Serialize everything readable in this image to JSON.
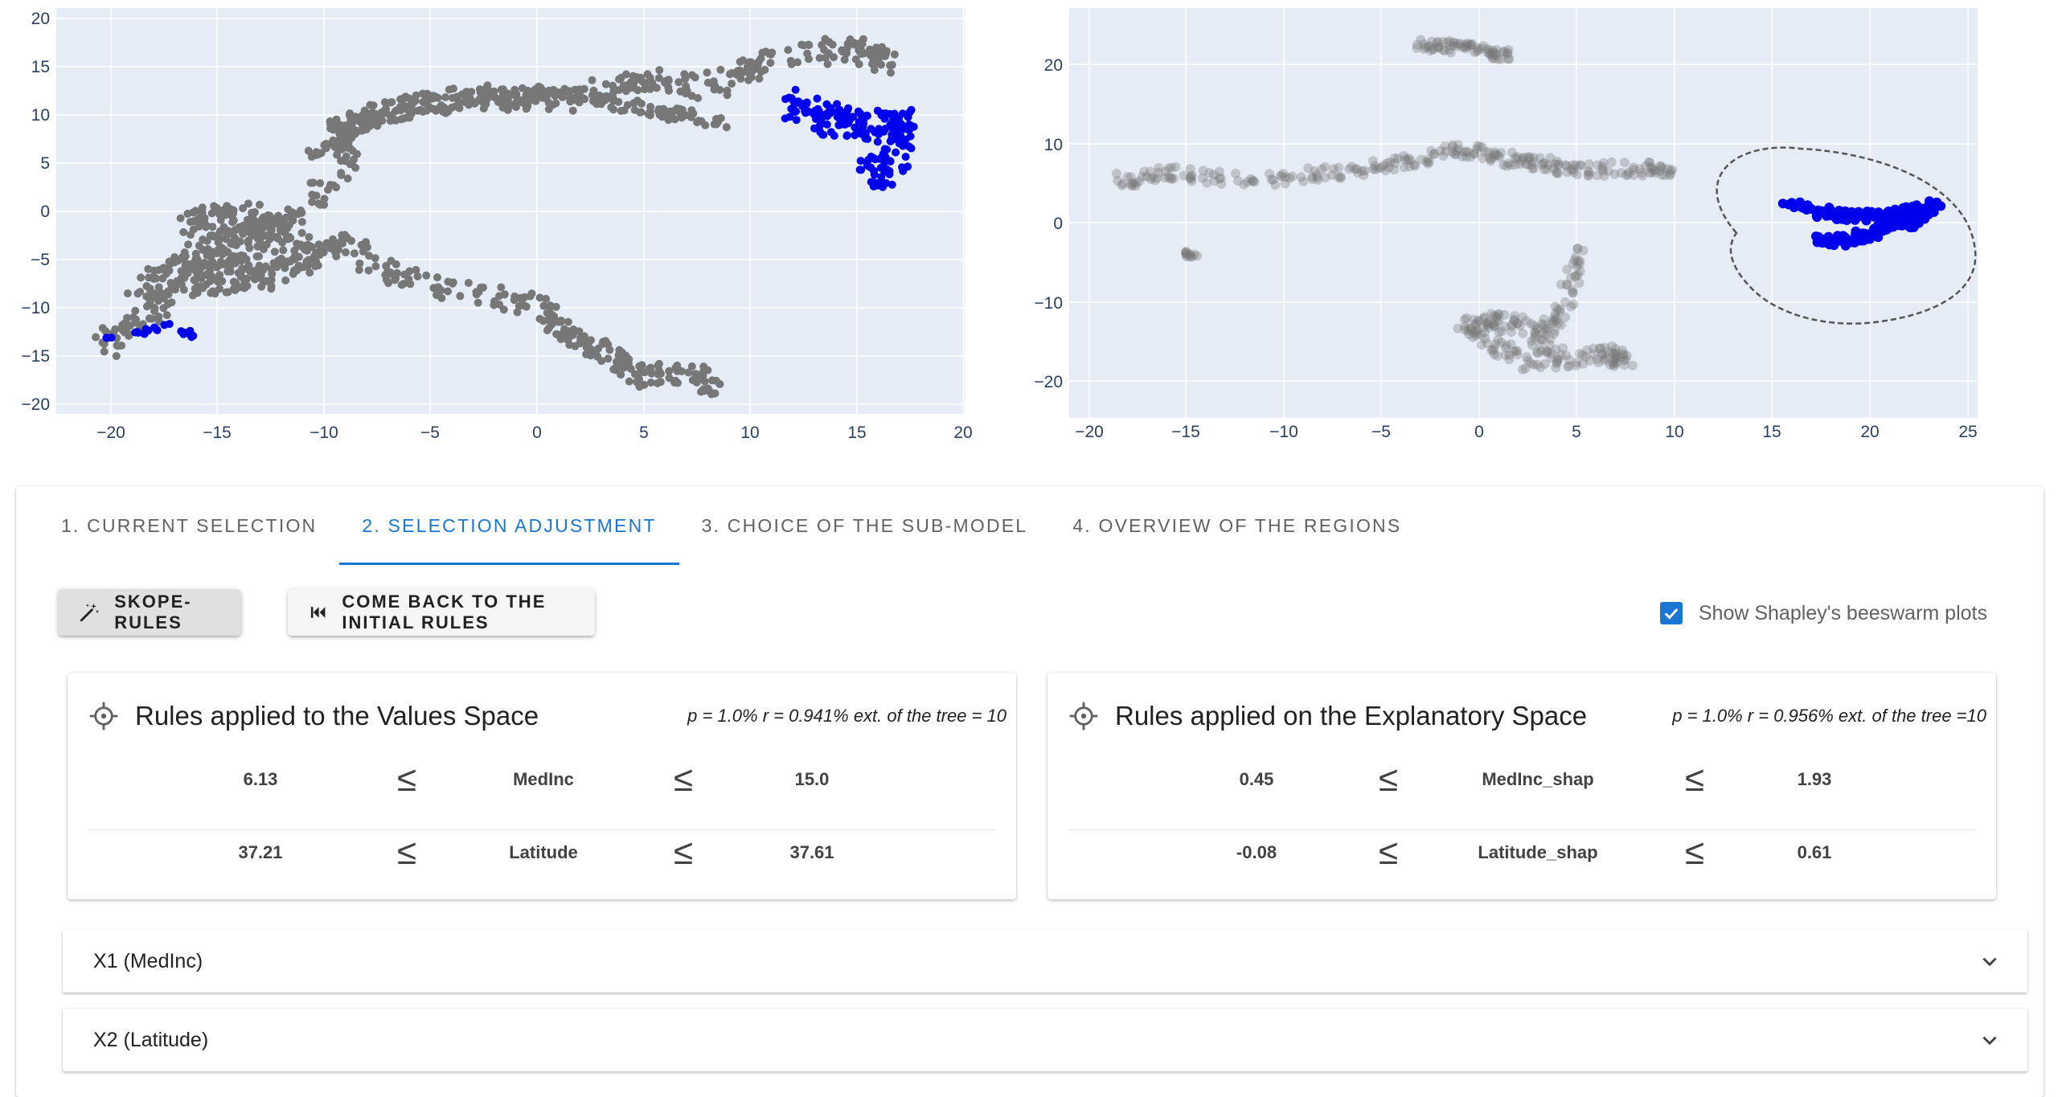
{
  "left_plot": {
    "x_ticks": [
      "−20",
      "−15",
      "−10",
      "−5",
      "0",
      "5",
      "10",
      "15",
      "20"
    ],
    "y_ticks": [
      "20",
      "15",
      "10",
      "5",
      "0",
      "−5",
      "−10",
      "−15",
      "−20"
    ]
  },
  "right_plot": {
    "x_ticks": [
      "−20",
      "−15",
      "−10",
      "−5",
      "0",
      "5",
      "10",
      "15",
      "20",
      "25"
    ],
    "y_ticks": [
      "20",
      "10",
      "0",
      "−10",
      "−20"
    ]
  },
  "colors": {
    "accent": "#1976d2",
    "selected_point": "#0000ee",
    "point": "#777777",
    "plot_bg": "#e5ecf6"
  },
  "tabs": [
    {
      "label": "1. Current selection"
    },
    {
      "label": "2. Selection adjustment"
    },
    {
      "label": "3. Choice of the sub-model"
    },
    {
      "label": "4. Overview of the regions"
    }
  ],
  "active_tab": 1,
  "buttons": {
    "skope": "Skope-Rules",
    "back": "Come back to the initial rules"
  },
  "checkbox": {
    "label": "Show Shapley's beeswarm plots",
    "checked": true
  },
  "values_card": {
    "title": "Rules applied to the Values Space",
    "stats": "p = 1.0% r = 0.941% ext. of the tree = 10",
    "rules": [
      {
        "min": "6.13",
        "op1": "≤",
        "feature": "MedInc",
        "op2": "≤",
        "max": "15.0"
      },
      {
        "min": "37.21",
        "op1": "≤",
        "feature": "Latitude",
        "op2": "≤",
        "max": "37.61"
      }
    ]
  },
  "explain_card": {
    "title": "Rules applied on the Explanatory Space",
    "stats": "p = 1.0% r = 0.956% ext. of the tree =10",
    "rules": [
      {
        "min": "0.45",
        "op1": "≤",
        "feature": "MedInc_shap",
        "op2": "≤",
        "max": "1.93"
      },
      {
        "min": "-0.08",
        "op1": "≤",
        "feature": "Latitude_shap",
        "op2": "≤",
        "max": "0.61"
      }
    ]
  },
  "expanders": [
    {
      "label": "X1 (MedInc)"
    },
    {
      "label": "X2 (Latitude)"
    }
  ]
}
